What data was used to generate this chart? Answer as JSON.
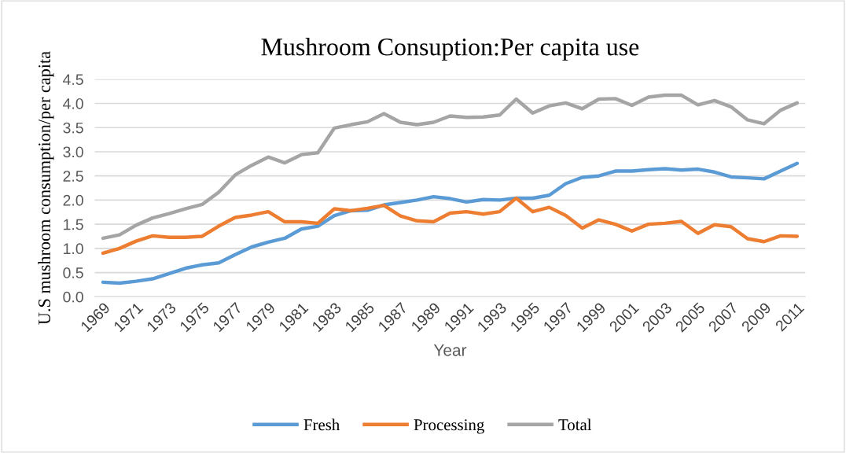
{
  "chart_data": {
    "type": "line",
    "title": "Mushroom Consuption:Per capita use",
    "xlabel": "Year",
    "ylabel": "U.S mushroom consumption/per capita",
    "categories": [
      "1969",
      null,
      "1971",
      null,
      "1973",
      null,
      "1975",
      null,
      "1977",
      null,
      "1979",
      null,
      "1981",
      null,
      "1983",
      null,
      "1985",
      null,
      "1987",
      null,
      "1989",
      null,
      "1991",
      null,
      "1993",
      null,
      "1995",
      null,
      "1997",
      null,
      "1999",
      null,
      "2001",
      null,
      "2003",
      null,
      "2005",
      null,
      "2007",
      null,
      "2009",
      null,
      "2011"
    ],
    "series": [
      {
        "name": "Fresh",
        "color": "#5b9bd5",
        "values": [
          0.3,
          0.28,
          0.32,
          0.37,
          0.48,
          0.59,
          0.66,
          0.7,
          0.87,
          1.03,
          1.13,
          1.21,
          1.4,
          1.46,
          1.68,
          1.78,
          1.79,
          1.9,
          1.95,
          2.0,
          2.07,
          2.03,
          1.96,
          2.01,
          2.0,
          2.04,
          2.04,
          2.1,
          2.34,
          2.47,
          2.5,
          2.6,
          2.6,
          2.63,
          2.65,
          2.62,
          2.64,
          2.58,
          2.48,
          2.46,
          2.44,
          2.6,
          2.76
        ]
      },
      {
        "name": "Processing",
        "color": "#ed7d31",
        "values": [
          0.9,
          1.0,
          1.15,
          1.26,
          1.23,
          1.23,
          1.25,
          1.46,
          1.64,
          1.69,
          1.76,
          1.55,
          1.55,
          1.52,
          1.82,
          1.78,
          1.83,
          1.89,
          1.67,
          1.57,
          1.55,
          1.73,
          1.76,
          1.71,
          1.76,
          2.04,
          1.76,
          1.85,
          1.68,
          1.42,
          1.59,
          1.5,
          1.36,
          1.5,
          1.52,
          1.56,
          1.31,
          1.49,
          1.45,
          1.2,
          1.14,
          1.26,
          1.25
        ]
      },
      {
        "name": "Total",
        "color": "#a5a5a5",
        "values": [
          1.21,
          1.28,
          1.48,
          1.63,
          1.72,
          1.82,
          1.91,
          2.16,
          2.52,
          2.72,
          2.89,
          2.77,
          2.94,
          2.98,
          3.49,
          3.56,
          3.62,
          3.79,
          3.61,
          3.56,
          3.61,
          3.74,
          3.71,
          3.72,
          3.76,
          4.09,
          3.8,
          3.95,
          4.01,
          3.89,
          4.09,
          4.1,
          3.96,
          4.13,
          4.17,
          4.17,
          3.97,
          4.06,
          3.93,
          3.66,
          3.58,
          3.86,
          4.01
        ]
      }
    ],
    "ylim": [
      0,
      4.5
    ],
    "yticks": [
      {
        "value": 0,
        "label": "0.0"
      },
      {
        "value": 0.5,
        "label": "0.5"
      },
      {
        "value": 1,
        "label": "1.0"
      },
      {
        "value": 1.5,
        "label": "1.5"
      },
      {
        "value": 2,
        "label": "2.0"
      },
      {
        "value": 2.5,
        "label": "2.5"
      },
      {
        "value": 3,
        "label": "3.0"
      },
      {
        "value": 3.5,
        "label": "3.5"
      },
      {
        "value": 4,
        "label": "4.0"
      },
      {
        "value": 4.5,
        "label": "4.5"
      }
    ],
    "grid": "y",
    "legend": "bottom",
    "marker": "none",
    "line_style": "solid"
  }
}
